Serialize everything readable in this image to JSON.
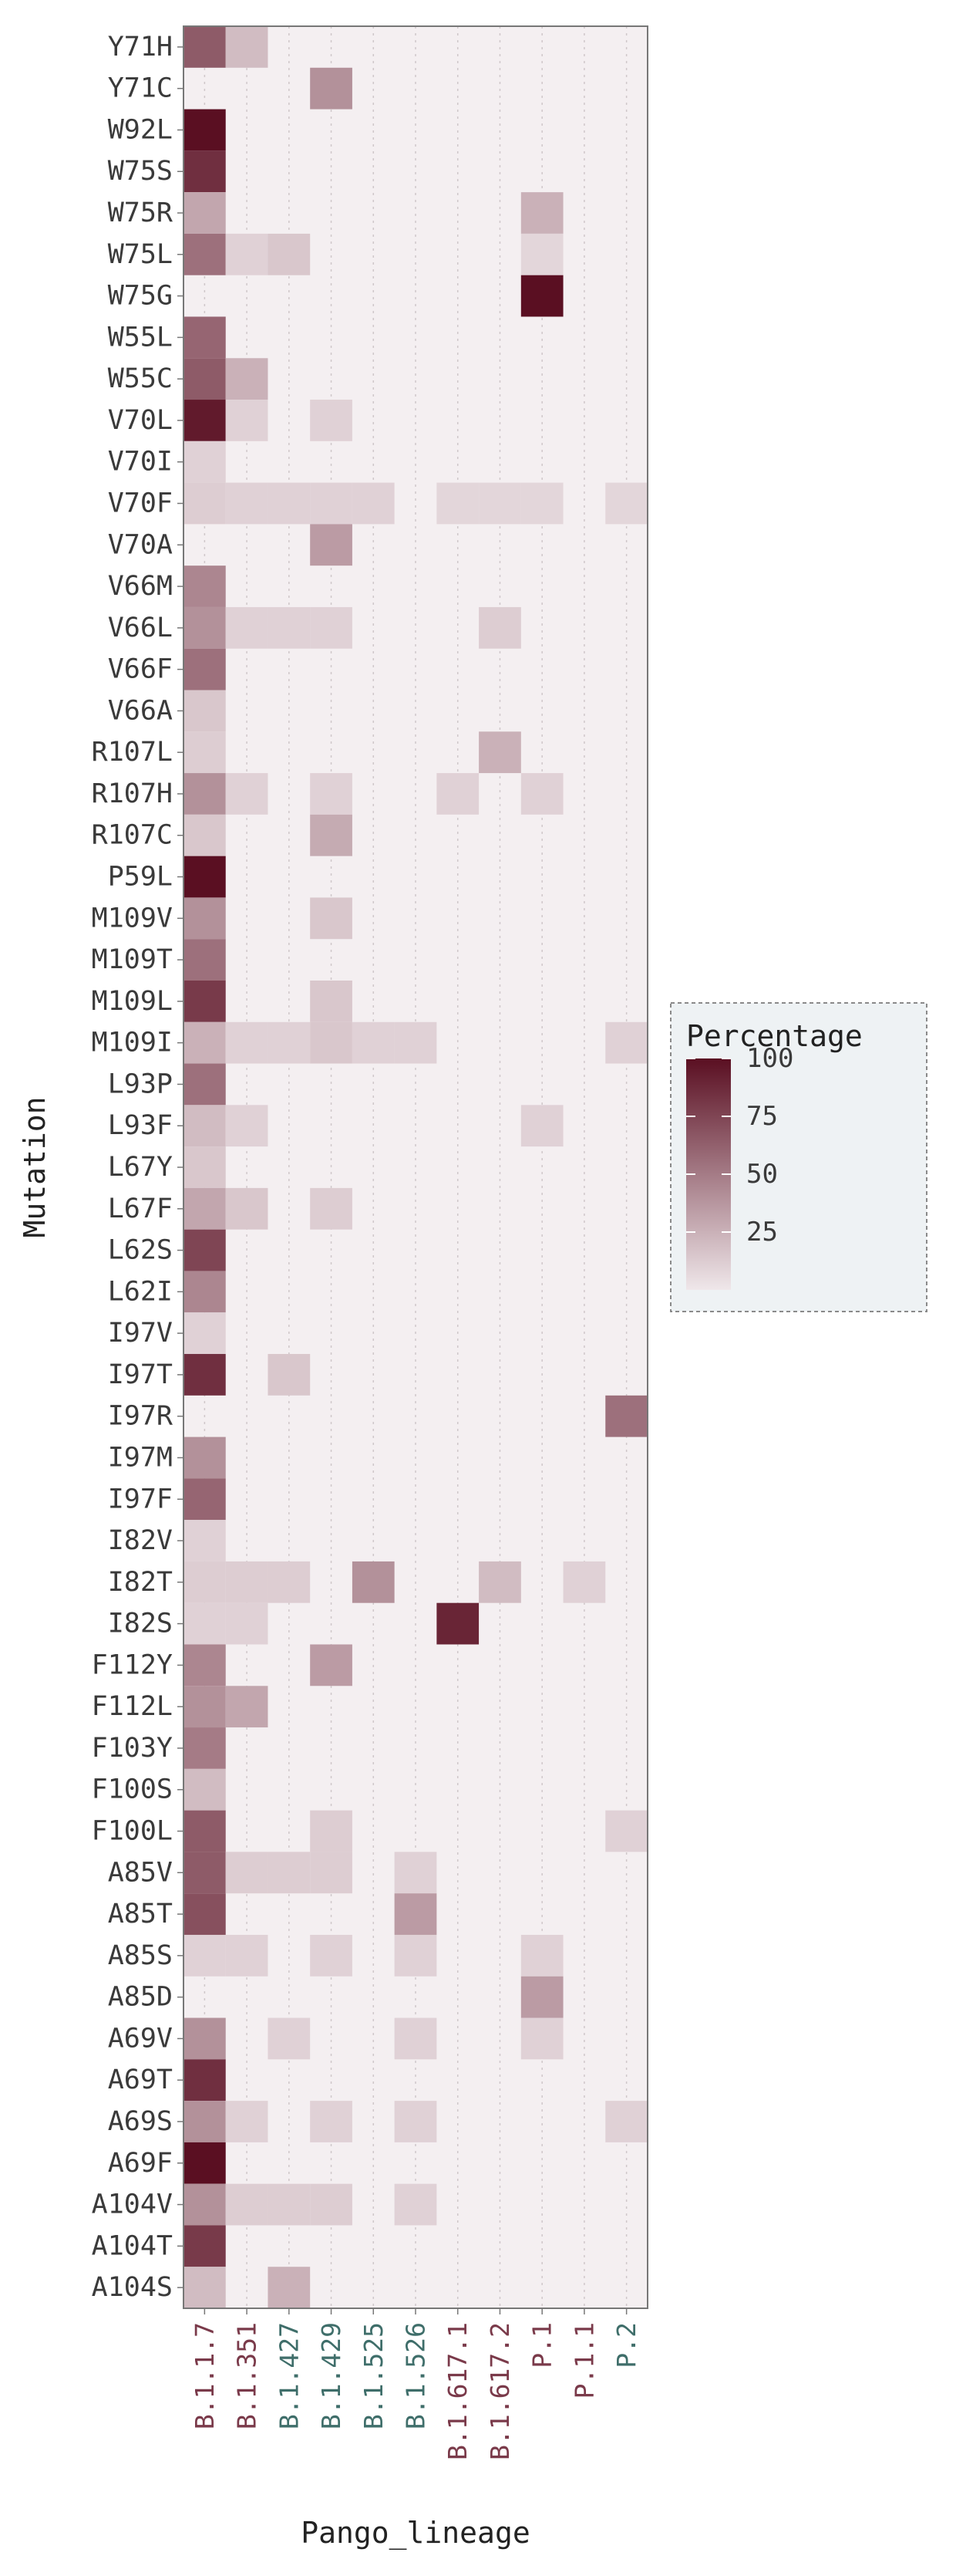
{
  "chart_data": {
    "type": "heatmap",
    "xlabel": "Pango_lineage",
    "ylabel": "Mutation",
    "x": [
      "B.1.1.7",
      "B.1.351",
      "B.1.427",
      "B.1.429",
      "B.1.525",
      "B.1.526",
      "B.1.617.1",
      "B.1.617.2",
      "P.1",
      "P.1.1",
      "P.2"
    ],
    "x_label_colors": [
      "#7a3a4a",
      "#7a3a4a",
      "#3f6e6a",
      "#3f6e6a",
      "#3f6e6a",
      "#3f6e6a",
      "#7a3a4a",
      "#7a3a4a",
      "#7a3a4a",
      "#7a3a4a",
      "#3f6e6a"
    ],
    "y": [
      "Y71H",
      "Y71C",
      "W92L",
      "W75S",
      "W75R",
      "W75L",
      "W75G",
      "W55L",
      "W55C",
      "V70L",
      "V70I",
      "V70F",
      "V70A",
      "V66M",
      "V66L",
      "V66F",
      "V66A",
      "R107L",
      "R107H",
      "R107C",
      "P59L",
      "M109V",
      "M109T",
      "M109L",
      "M109I",
      "L93P",
      "L93F",
      "L67Y",
      "L67F",
      "L62S",
      "L62I",
      "I97V",
      "I97T",
      "I97R",
      "I97M",
      "I97F",
      "I82V",
      "I82T",
      "I82S",
      "F112Y",
      "F112L",
      "F103Y",
      "F100S",
      "F100L",
      "A85V",
      "A85T",
      "A85S",
      "A85D",
      "A69V",
      "A69T",
      "A69S",
      "A69F",
      "A104V",
      "A104T",
      "A104S"
    ],
    "values": [
      [
        65,
        20,
        0,
        0,
        0,
        0,
        0,
        0,
        0,
        0,
        0
      ],
      [
        0,
        0,
        0,
        40,
        0,
        0,
        0,
        0,
        0,
        0,
        0
      ],
      [
        100,
        0,
        0,
        0,
        0,
        0,
        0,
        0,
        0,
        0,
        0
      ],
      [
        85,
        0,
        0,
        0,
        0,
        0,
        0,
        0,
        0,
        0,
        0
      ],
      [
        30,
        0,
        0,
        0,
        0,
        0,
        0,
        0,
        25,
        0,
        0
      ],
      [
        55,
        10,
        15,
        0,
        0,
        0,
        0,
        0,
        8,
        0,
        0
      ],
      [
        0,
        0,
        0,
        0,
        0,
        0,
        0,
        0,
        100,
        0,
        0
      ],
      [
        60,
        0,
        0,
        0,
        0,
        0,
        0,
        0,
        0,
        0,
        0
      ],
      [
        65,
        25,
        0,
        0,
        0,
        0,
        0,
        0,
        0,
        0,
        0
      ],
      [
        95,
        10,
        0,
        10,
        0,
        0,
        0,
        0,
        0,
        0,
        0
      ],
      [
        10,
        0,
        0,
        0,
        0,
        0,
        0,
        0,
        0,
        0,
        0
      ],
      [
        12,
        10,
        10,
        10,
        10,
        0,
        8,
        8,
        8,
        0,
        8
      ],
      [
        0,
        0,
        0,
        35,
        0,
        0,
        0,
        0,
        0,
        0,
        0
      ],
      [
        45,
        0,
        0,
        0,
        0,
        0,
        0,
        0,
        0,
        0,
        0
      ],
      [
        40,
        10,
        10,
        10,
        0,
        0,
        0,
        12,
        0,
        0,
        0
      ],
      [
        55,
        0,
        0,
        0,
        0,
        0,
        0,
        0,
        0,
        0,
        0
      ],
      [
        15,
        0,
        0,
        0,
        0,
        0,
        0,
        0,
        0,
        0,
        0
      ],
      [
        12,
        0,
        0,
        0,
        0,
        0,
        0,
        25,
        0,
        0,
        0
      ],
      [
        40,
        10,
        0,
        10,
        0,
        0,
        10,
        0,
        10,
        0,
        0
      ],
      [
        15,
        0,
        0,
        28,
        0,
        0,
        0,
        0,
        0,
        0,
        0
      ],
      [
        100,
        0,
        0,
        0,
        0,
        0,
        0,
        0,
        0,
        0,
        0
      ],
      [
        40,
        0,
        0,
        15,
        0,
        0,
        0,
        0,
        0,
        0,
        0
      ],
      [
        55,
        0,
        0,
        0,
        0,
        0,
        0,
        0,
        0,
        0,
        0
      ],
      [
        80,
        0,
        0,
        15,
        0,
        0,
        0,
        0,
        0,
        0,
        0
      ],
      [
        25,
        10,
        10,
        15,
        10,
        10,
        0,
        0,
        0,
        0,
        10
      ],
      [
        55,
        0,
        0,
        0,
        0,
        0,
        0,
        0,
        0,
        0,
        0
      ],
      [
        20,
        10,
        0,
        0,
        0,
        0,
        0,
        0,
        10,
        0,
        0
      ],
      [
        15,
        0,
        0,
        0,
        0,
        0,
        0,
        0,
        0,
        0,
        0
      ],
      [
        30,
        15,
        0,
        12,
        0,
        0,
        0,
        0,
        0,
        0,
        0
      ],
      [
        75,
        0,
        0,
        0,
        0,
        0,
        0,
        0,
        0,
        0,
        0
      ],
      [
        45,
        0,
        0,
        0,
        0,
        0,
        0,
        0,
        0,
        0,
        0
      ],
      [
        10,
        0,
        0,
        0,
        0,
        0,
        0,
        0,
        0,
        0,
        0
      ],
      [
        85,
        0,
        15,
        0,
        0,
        0,
        0,
        0,
        0,
        0,
        0
      ],
      [
        0,
        0,
        0,
        0,
        0,
        0,
        0,
        0,
        0,
        0,
        55
      ],
      [
        40,
        0,
        0,
        0,
        0,
        0,
        0,
        0,
        0,
        0,
        0
      ],
      [
        60,
        0,
        0,
        0,
        0,
        0,
        0,
        0,
        0,
        0,
        0
      ],
      [
        10,
        0,
        0,
        0,
        0,
        0,
        0,
        0,
        0,
        0,
        0
      ],
      [
        12,
        12,
        12,
        0,
        40,
        0,
        0,
        20,
        0,
        10,
        0
      ],
      [
        10,
        10,
        0,
        0,
        0,
        0,
        90,
        0,
        0,
        0,
        0
      ],
      [
        45,
        0,
        0,
        35,
        0,
        0,
        0,
        0,
        0,
        0,
        0
      ],
      [
        40,
        30,
        0,
        0,
        0,
        0,
        0,
        0,
        0,
        0,
        0
      ],
      [
        50,
        0,
        0,
        0,
        0,
        0,
        0,
        0,
        0,
        0,
        0
      ],
      [
        20,
        0,
        0,
        0,
        0,
        0,
        0,
        0,
        0,
        0,
        0
      ],
      [
        65,
        0,
        0,
        12,
        0,
        0,
        0,
        0,
        0,
        0,
        10
      ],
      [
        65,
        12,
        12,
        12,
        0,
        10,
        0,
        0,
        0,
        0,
        0
      ],
      [
        70,
        0,
        0,
        0,
        0,
        35,
        0,
        0,
        0,
        0,
        0
      ],
      [
        10,
        10,
        0,
        10,
        0,
        10,
        0,
        0,
        10,
        0,
        0
      ],
      [
        0,
        0,
        0,
        0,
        0,
        0,
        0,
        0,
        35,
        0,
        0
      ],
      [
        40,
        0,
        10,
        0,
        0,
        10,
        0,
        0,
        10,
        0,
        0
      ],
      [
        85,
        0,
        0,
        0,
        0,
        0,
        0,
        0,
        0,
        0,
        0
      ],
      [
        40,
        10,
        0,
        10,
        0,
        10,
        0,
        0,
        0,
        0,
        10
      ],
      [
        100,
        0,
        0,
        0,
        0,
        0,
        0,
        0,
        0,
        0,
        0
      ],
      [
        40,
        12,
        12,
        12,
        0,
        10,
        0,
        0,
        0,
        0,
        0
      ],
      [
        80,
        0,
        0,
        0,
        0,
        0,
        0,
        0,
        0,
        0,
        0
      ],
      [
        20,
        0,
        25,
        0,
        0,
        0,
        0,
        0,
        0,
        0,
        0
      ]
    ],
    "value_range": [
      0,
      100
    ],
    "colorscale": [
      "#efe7ea",
      "#5a0f22"
    ],
    "background": "#f4eff1",
    "grid": true,
    "legend": {
      "title": "Percentage",
      "ticks": [
        100,
        75,
        50,
        25
      ],
      "placement": "right"
    }
  }
}
